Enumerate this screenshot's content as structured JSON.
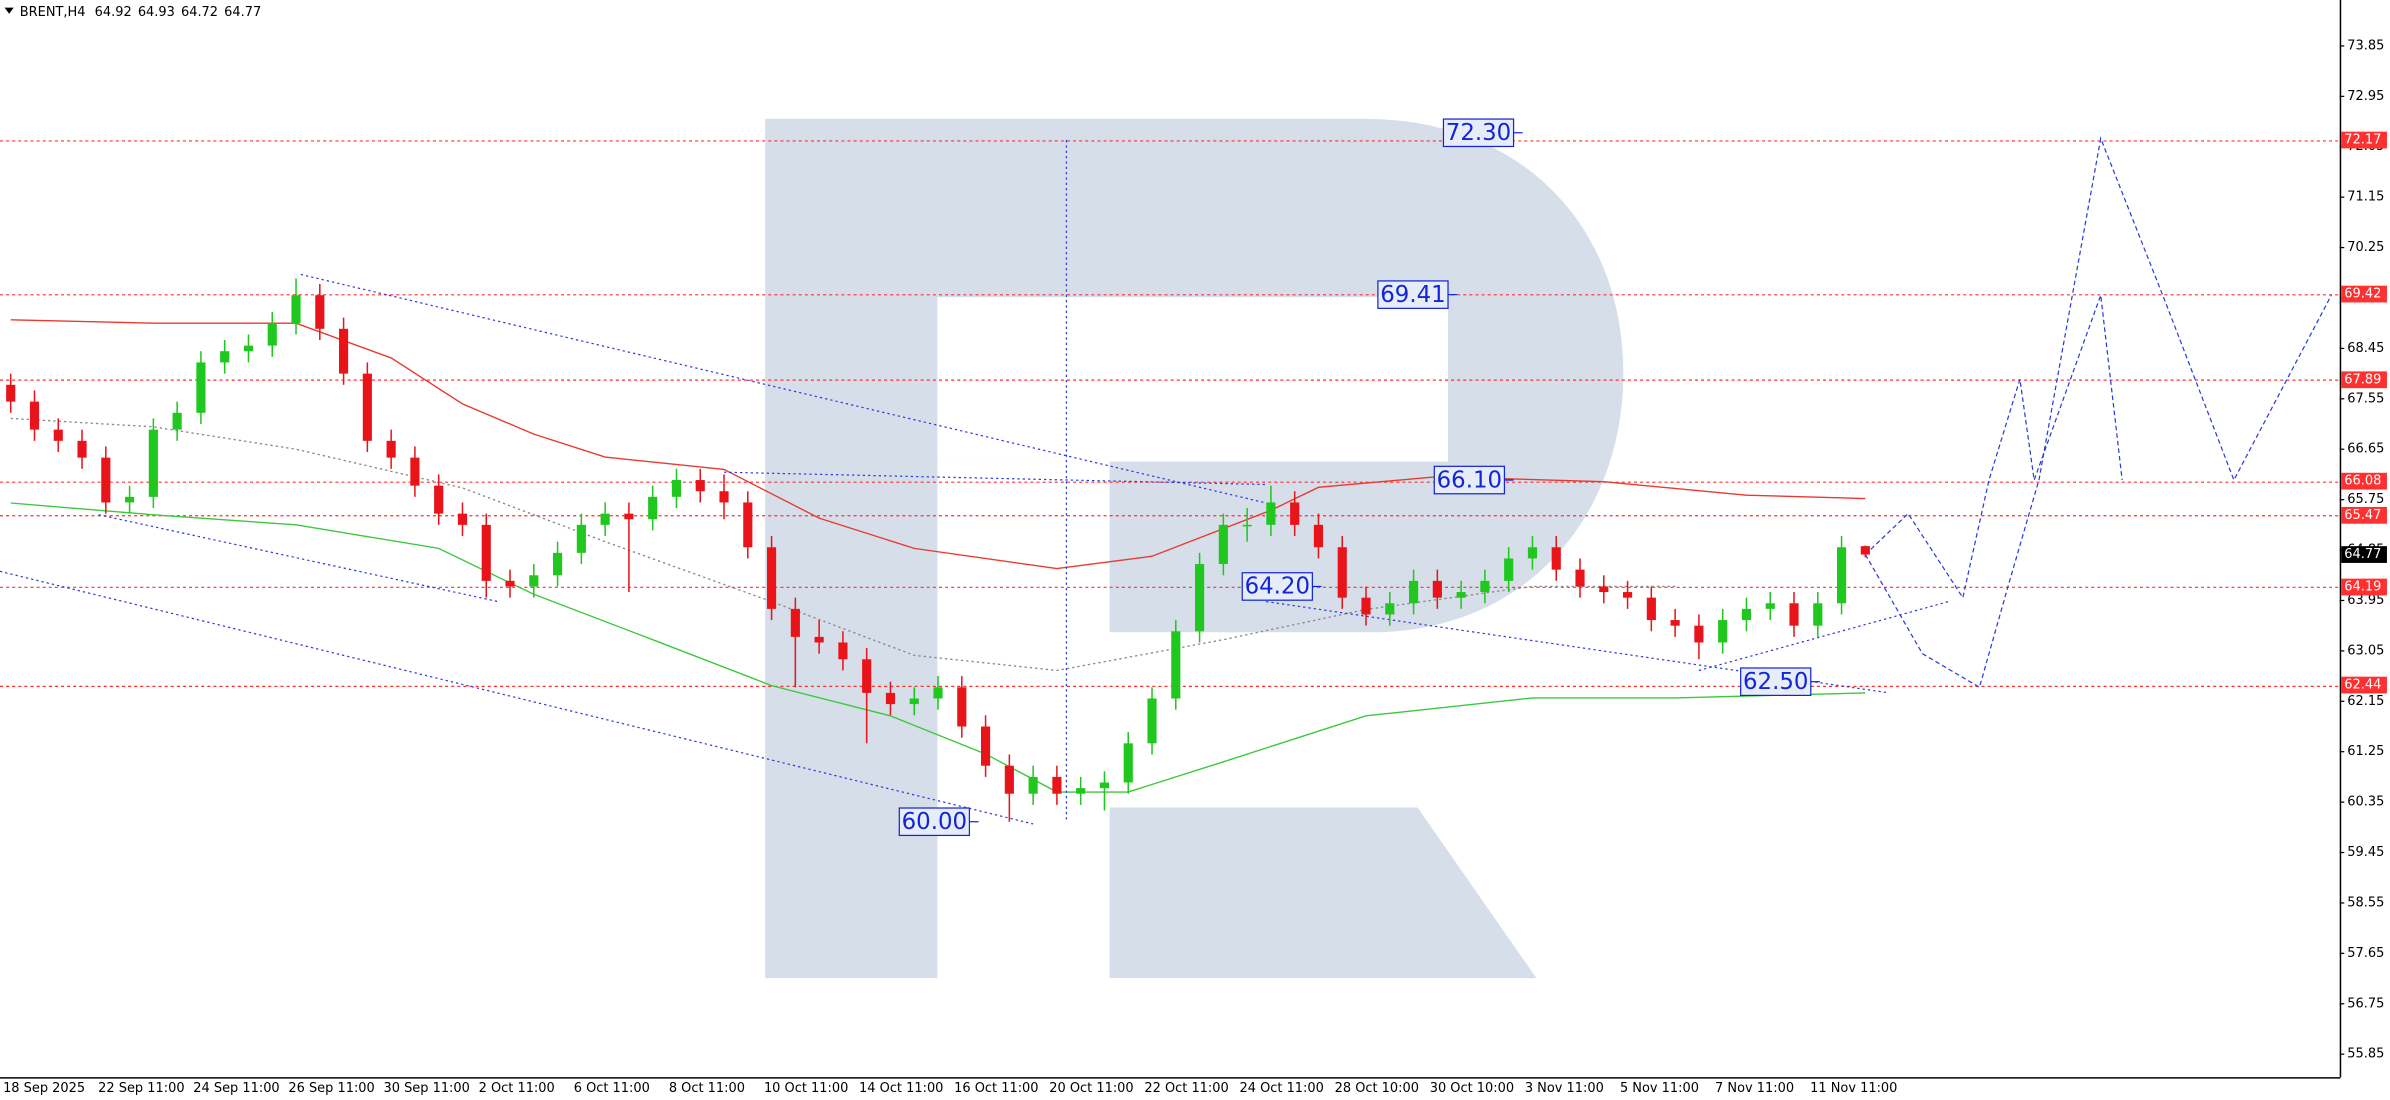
{
  "chart_data": {
    "type": "candlestick",
    "symbol": "BRENT,H4",
    "ohlc": [
      64.92,
      64.93,
      64.72,
      64.77
    ],
    "categories": [
      "18 Sep 2025",
      null,
      null,
      null,
      "22 Sep 11:00",
      null,
      null,
      null,
      "24 Sep 11:00",
      null,
      null,
      null,
      "26 Sep 11:00",
      null,
      null,
      null,
      "30 Sep 11:00",
      null,
      null,
      null,
      "2 Oct 11:00",
      null,
      null,
      null,
      "6 Oct 11:00",
      null,
      null,
      null,
      "8 Oct 11:00",
      null,
      null,
      null,
      "10 Oct 11:00",
      null,
      null,
      null,
      "14 Oct 11:00",
      null,
      null,
      null,
      "16 Oct 11:00",
      null,
      null,
      null,
      "20 Oct 11:00",
      null,
      null,
      null,
      "22 Oct 11:00",
      null,
      null,
      null,
      "24 Oct 11:00",
      null,
      null,
      null,
      "28 Oct 10:00",
      null,
      null,
      null,
      "30 Oct 10:00",
      null,
      null,
      null,
      "3 Nov 11:00",
      null,
      null,
      null,
      "5 Nov 11:00",
      null,
      null,
      null,
      "7 Nov 11:00",
      null,
      null,
      null,
      "11 Nov 11:00",
      null,
      null
    ],
    "open": [
      67.8,
      67.5,
      67.0,
      66.8,
      66.5,
      65.7,
      65.8,
      67.0,
      67.3,
      68.2,
      68.4,
      68.5,
      68.9,
      69.4,
      68.8,
      68.0,
      66.8,
      66.5,
      66.0,
      65.5,
      65.3,
      64.3,
      64.2,
      64.4,
      64.8,
      65.3,
      65.5,
      65.4,
      65.8,
      66.1,
      65.9,
      65.7,
      64.9,
      63.8,
      63.3,
      63.2,
      62.9,
      62.3,
      62.1,
      62.2,
      62.4,
      61.7,
      61.0,
      60.5,
      60.8,
      60.5,
      60.6,
      60.7,
      61.4,
      62.2,
      63.4,
      64.6,
      65.3,
      65.3,
      65.7,
      65.3,
      64.9,
      64.0,
      63.7,
      63.9,
      64.3,
      64.0,
      64.1,
      64.3,
      64.7,
      64.9,
      64.5,
      64.2,
      64.1,
      64.0,
      63.6,
      63.5,
      63.2,
      63.6,
      63.8,
      63.9,
      63.5,
      63.9,
      64.92
    ],
    "high": [
      68.0,
      67.7,
      67.2,
      67.0,
      66.7,
      66.0,
      67.2,
      67.5,
      68.4,
      68.6,
      68.7,
      69.1,
      69.7,
      69.6,
      69.0,
      68.2,
      67.0,
      66.7,
      66.2,
      65.7,
      65.5,
      64.5,
      64.6,
      65.0,
      65.5,
      65.7,
      65.7,
      66.0,
      66.3,
      66.3,
      66.2,
      65.9,
      65.1,
      64.0,
      63.6,
      63.4,
      63.1,
      62.5,
      62.4,
      62.6,
      62.6,
      61.9,
      61.2,
      61.0,
      61.0,
      60.8,
      60.9,
      61.6,
      62.4,
      63.6,
      64.8,
      65.5,
      65.6,
      66.0,
      65.9,
      65.5,
      65.1,
      64.2,
      64.1,
      64.5,
      64.5,
      64.3,
      64.5,
      64.9,
      65.1,
      65.1,
      64.7,
      64.4,
      64.3,
      64.2,
      63.8,
      63.7,
      63.8,
      64.0,
      64.1,
      64.1,
      64.1,
      65.1,
      64.93
    ],
    "low": [
      67.3,
      66.8,
      66.6,
      66.3,
      65.5,
      65.5,
      65.6,
      66.8,
      67.1,
      68.0,
      68.2,
      68.3,
      68.7,
      68.6,
      67.8,
      66.6,
      66.3,
      65.8,
      65.3,
      65.1,
      64.0,
      64.0,
      64.0,
      64.2,
      64.6,
      65.1,
      64.1,
      65.2,
      65.6,
      65.7,
      65.4,
      64.7,
      63.6,
      62.4,
      63.0,
      62.7,
      61.4,
      61.9,
      61.9,
      62.0,
      61.5,
      60.8,
      60.0,
      60.3,
      60.3,
      60.3,
      60.2,
      60.5,
      61.2,
      62.0,
      63.2,
      64.4,
      65.0,
      65.1,
      65.1,
      64.7,
      63.8,
      63.5,
      63.5,
      63.7,
      63.8,
      63.8,
      63.9,
      64.1,
      64.5,
      64.3,
      64.0,
      63.9,
      63.8,
      63.4,
      63.3,
      62.9,
      63.0,
      63.4,
      63.6,
      63.3,
      63.3,
      63.7,
      64.72
    ],
    "close": [
      67.5,
      67.0,
      66.8,
      66.5,
      65.7,
      65.8,
      67.0,
      67.3,
      68.2,
      68.4,
      68.5,
      68.9,
      69.4,
      68.8,
      68.0,
      66.8,
      66.5,
      66.0,
      65.5,
      65.3,
      64.3,
      64.2,
      64.4,
      64.8,
      65.3,
      65.5,
      65.4,
      65.8,
      66.1,
      65.9,
      65.7,
      64.9,
      63.8,
      63.3,
      63.2,
      62.9,
      62.3,
      62.1,
      62.2,
      62.4,
      61.7,
      61.0,
      60.5,
      60.8,
      60.5,
      60.6,
      60.7,
      61.4,
      62.2,
      63.4,
      64.6,
      65.3,
      65.3,
      65.7,
      65.3,
      64.9,
      64.0,
      63.7,
      63.9,
      64.3,
      64.0,
      64.1,
      64.3,
      64.7,
      64.9,
      64.5,
      64.2,
      64.1,
      64.0,
      63.6,
      63.5,
      63.2,
      63.6,
      63.8,
      63.9,
      63.5,
      63.9,
      64.9,
      64.77
    ],
    "up_color": "#1fc71f",
    "down_color": "#e8141a",
    "xlim": [
      -0.45,
      97.95
    ],
    "ylim": [
      55.44,
      74.67
    ],
    "yticks": [
      73.85,
      72.95,
      72.05,
      71.15,
      70.25,
      69.35,
      68.45,
      67.55,
      66.65,
      65.75,
      64.85,
      63.95,
      63.05,
      62.15,
      61.25,
      60.35,
      59.45,
      58.55,
      57.65,
      56.75,
      55.85
    ],
    "levels": [
      72.17,
      69.42,
      67.89,
      66.08,
      65.47,
      64.19,
      62.44
    ],
    "level_color": "#ff3030",
    "current_price": 64.77,
    "lines": [
      {
        "color": "#e83a30",
        "style": "solid",
        "x": [
          0,
          6,
          12,
          16,
          19,
          22,
          25,
          30,
          34,
          38,
          44,
          48,
          53,
          55,
          60,
          67,
          73,
          78
        ],
        "values": [
          68.96,
          68.9,
          68.9,
          68.28,
          67.46,
          66.92,
          66.51,
          66.29,
          65.42,
          64.88,
          64.52,
          64.74,
          65.56,
          65.97,
          66.16,
          66.07,
          65.83,
          65.77
        ]
      },
      {
        "color": "#3cc83c",
        "style": "solid",
        "x": [
          0,
          6,
          12,
          18,
          22,
          27,
          32,
          37,
          41,
          44,
          47,
          51,
          57,
          64,
          70,
          78
        ],
        "values": [
          65.69,
          65.48,
          65.3,
          64.88,
          64.06,
          63.25,
          62.43,
          61.89,
          61.21,
          60.53,
          60.53,
          61.07,
          61.89,
          62.21,
          62.21,
          62.3
        ]
      },
      {
        "color": "#8a8a8a",
        "style": "dotted",
        "x": [
          0,
          6,
          12,
          19,
          25,
          32,
          38,
          44,
          51,
          57,
          64,
          70
        ],
        "values": [
          67.2,
          67.05,
          66.65,
          65.96,
          65.0,
          63.93,
          62.97,
          62.7,
          63.25,
          63.79,
          64.2,
          64.2
        ]
      }
    ],
    "trendline_color": "#2a3ad8",
    "trendlines": [
      {
        "x": [
          12.2,
          52.8
        ],
        "values": [
          69.77,
          65.69
        ]
      },
      {
        "x": [
          -0.45,
          43.0
        ],
        "values": [
          64.47,
          59.96
        ]
      },
      {
        "x": [
          3.7,
          20.5
        ],
        "values": [
          65.48,
          63.93
        ]
      },
      {
        "x": [
          30,
          52.8
        ],
        "values": [
          66.24,
          66.02
        ]
      },
      {
        "x": [
          52.8,
          79.0
        ],
        "values": [
          63.93,
          62.3
        ]
      },
      {
        "x": [
          71,
          81.5
        ],
        "values": [
          62.7,
          63.93
        ]
      },
      {
        "x": [
          44.4,
          44.4
        ],
        "values": [
          72.17,
          60.0
        ]
      }
    ],
    "forecast": [
      {
        "x": [
          78,
          79.8,
          82.1,
          83.2,
          84.5,
          85.1,
          87.9,
          88.8
        ],
        "values": [
          64.77,
          65.5,
          64.0,
          66.1,
          67.9,
          66.1,
          69.4,
          66.1
        ]
      },
      {
        "x": [
          78,
          80.4,
          82.8,
          84.0,
          85.3,
          87.9,
          90.6,
          93.5,
          97.6
        ],
        "values": [
          64.77,
          63.0,
          62.4,
          64.2,
          66.1,
          72.2,
          69.3,
          66.1,
          69.4
        ]
      }
    ],
    "annotation_color": "#1325d6",
    "annotations": [
      {
        "value": 72.3,
        "label": "72.30"
      },
      {
        "value": 69.41,
        "label": "69.41"
      },
      {
        "value": 66.1,
        "label": "66.10"
      },
      {
        "value": 64.2,
        "label": "64.20"
      },
      {
        "value": 62.5,
        "label": "62.50"
      },
      {
        "value": 60,
        "label": "60.00"
      }
    ]
  }
}
